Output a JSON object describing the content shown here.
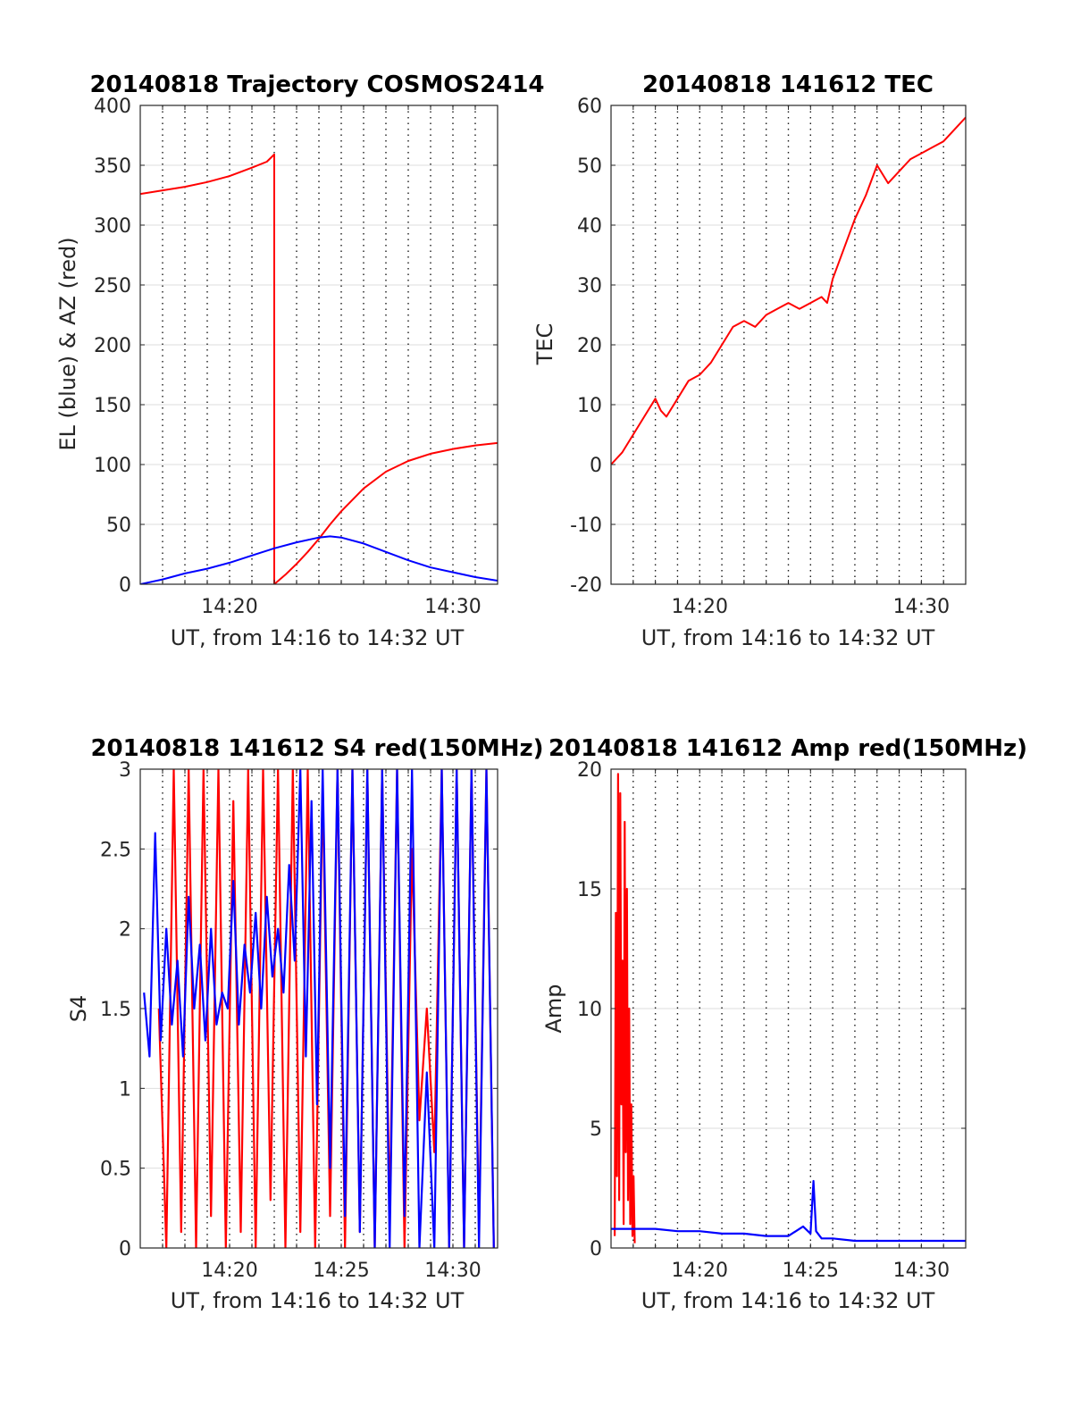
{
  "chart_data": [
    {
      "type": "line",
      "title": "20140818 Trajectory COSMOS2414",
      "xlabel": "UT, from 14:16 to 14:32 UT",
      "ylabel": "EL (blue) & AZ (red)",
      "xlim": [
        "14:16",
        "14:32"
      ],
      "ylim": [
        0,
        400
      ],
      "x_ticks": [
        "14:20",
        "14:30"
      ],
      "y_ticks": [
        0,
        50,
        100,
        150,
        200,
        250,
        300,
        350,
        400
      ],
      "grid": "on",
      "series": [
        {
          "color": "#ff0000",
          "x": [
            "14:16:00",
            "14:17:00",
            "14:18:00",
            "14:19:00",
            "14:20:00",
            "14:21:00",
            "14:21:40",
            "14:22:00",
            "14:22:00",
            "14:22:30",
            "14:23:00",
            "14:23:30",
            "14:24:00",
            "14:24:30",
            "14:25:00",
            "14:26:00",
            "14:27:00",
            "14:28:00",
            "14:29:00",
            "14:30:00",
            "14:31:00",
            "14:32:00"
          ],
          "values": [
            326,
            329,
            332,
            336,
            341,
            348,
            353,
            359,
            0,
            8,
            17,
            27,
            38,
            50,
            61,
            80,
            94,
            103,
            109,
            113,
            116,
            118
          ]
        },
        {
          "color": "#0000ff",
          "x": [
            "14:16:00",
            "14:17:00",
            "14:18:00",
            "14:19:00",
            "14:20:00",
            "14:21:00",
            "14:22:00",
            "14:23:00",
            "14:24:00",
            "14:24:30",
            "14:25:00",
            "14:26:00",
            "14:27:00",
            "14:28:00",
            "14:29:00",
            "14:30:00",
            "14:31:00",
            "14:32:00"
          ],
          "values": [
            0,
            4,
            9,
            13,
            18,
            24,
            30,
            35,
            39,
            40,
            39,
            34,
            27,
            20,
            14,
            10,
            6,
            3
          ]
        }
      ]
    },
    {
      "type": "line",
      "title": "20140818 141612 TEC",
      "xlabel": "UT, from 14:16 to 14:32 UT",
      "ylabel": "TEC",
      "xlim": [
        "14:16",
        "14:32"
      ],
      "ylim": [
        -20,
        60
      ],
      "x_ticks": [
        "14:20",
        "14:30"
      ],
      "y_ticks": [
        -20,
        -10,
        0,
        10,
        20,
        30,
        40,
        50,
        60
      ],
      "grid": "on",
      "series": [
        {
          "color": "#ff0000",
          "x": [
            "14:16:00",
            "14:16:30",
            "14:17:00",
            "14:17:30",
            "14:18:00",
            "14:18:15",
            "14:18:30",
            "14:19:00",
            "14:19:30",
            "14:20:00",
            "14:20:30",
            "14:21:00",
            "14:21:30",
            "14:22:00",
            "14:22:30",
            "14:23:00",
            "14:23:30",
            "14:24:00",
            "14:24:30",
            "14:25:00",
            "14:25:30",
            "14:25:45",
            "14:26:00",
            "14:26:30",
            "14:27:00",
            "14:27:30",
            "14:28:00",
            "14:28:30",
            "14:29:00",
            "14:29:30",
            "14:30:00",
            "14:30:30",
            "14:31:00",
            "14:31:30",
            "14:32:00"
          ],
          "values": [
            0,
            2,
            5,
            8,
            11,
            9,
            8,
            11,
            14,
            15,
            17,
            20,
            23,
            24,
            23,
            25,
            26,
            27,
            26,
            27,
            28,
            27,
            31,
            36,
            41,
            45,
            50,
            47,
            49,
            51,
            52,
            53,
            54,
            56,
            58
          ]
        }
      ]
    },
    {
      "type": "line",
      "title": "20140818 141612 S4 red(150MHz)",
      "xlabel": "UT, from 14:16 to 14:32 UT",
      "ylabel": "S4",
      "xlim": [
        "14:16",
        "14:32"
      ],
      "ylim": [
        0,
        3
      ],
      "x_ticks": [
        "14:20",
        "14:25",
        "14:30"
      ],
      "y_ticks": [
        0,
        0.5,
        1,
        1.5,
        2,
        2.5,
        3
      ],
      "grid": "on",
      "series": [
        {
          "color": "#ff0000",
          "x": [
            "14:16:50",
            "14:17:10",
            "14:17:30",
            "14:17:50",
            "14:18:10",
            "14:18:30",
            "14:18:50",
            "14:19:10",
            "14:19:30",
            "14:19:50",
            "14:20:10",
            "14:20:30",
            "14:20:50",
            "14:21:10",
            "14:21:30",
            "14:21:50",
            "14:22:10",
            "14:22:30",
            "14:22:50",
            "14:23:10",
            "14:23:30",
            "14:23:50",
            "14:24:10",
            "14:24:30",
            "14:24:50",
            "14:25:10",
            "14:25:30",
            "14:25:50",
            "14:26:10",
            "14:26:30",
            "14:26:50",
            "14:27:10",
            "14:27:30",
            "14:27:50",
            "14:28:10",
            "14:28:30",
            "14:28:50",
            "14:29:10",
            "14:29:30",
            "14:29:50",
            "14:30:10",
            "14:30:30",
            "14:30:50",
            "14:31:10",
            "14:31:30",
            "14:31:50"
          ],
          "values": [
            1.5,
            0,
            3,
            0.1,
            3,
            0,
            3,
            0.2,
            3,
            0,
            2.8,
            0.1,
            3,
            0,
            3,
            0.3,
            3,
            0,
            3,
            0.1,
            3,
            0,
            2.9,
            0.2,
            3,
            0,
            3,
            0.1,
            3,
            0,
            3,
            0.2,
            3,
            0,
            2.5,
            0.8,
            1.5,
            0.6,
            3,
            0,
            3,
            0,
            3,
            0.1,
            3,
            0
          ]
        },
        {
          "color": "#0000ff",
          "x": [
            "14:16:10",
            "14:16:25",
            "14:16:40",
            "14:16:55",
            "14:17:10",
            "14:17:25",
            "14:17:40",
            "14:17:55",
            "14:18:10",
            "14:18:25",
            "14:18:40",
            "14:18:55",
            "14:19:10",
            "14:19:25",
            "14:19:40",
            "14:19:55",
            "14:20:10",
            "14:20:25",
            "14:20:40",
            "14:20:55",
            "14:21:10",
            "14:21:25",
            "14:21:40",
            "14:21:55",
            "14:22:10",
            "14:22:25",
            "14:22:40",
            "14:22:55",
            "14:23:10",
            "14:23:25",
            "14:23:40",
            "14:23:55",
            "14:24:10",
            "14:24:30",
            "14:24:50",
            "14:25:10",
            "14:25:30",
            "14:25:50",
            "14:26:10",
            "14:26:30",
            "14:26:50",
            "14:27:10",
            "14:27:30",
            "14:27:50",
            "14:28:10",
            "14:28:30",
            "14:28:50",
            "14:29:10",
            "14:29:30",
            "14:29:50",
            "14:30:10",
            "14:30:30",
            "14:30:50",
            "14:31:10",
            "14:31:30",
            "14:31:50"
          ],
          "values": [
            1.6,
            1.2,
            2.6,
            1.3,
            2.0,
            1.4,
            1.8,
            1.2,
            2.2,
            1.5,
            1.9,
            1.3,
            2.0,
            1.4,
            1.6,
            1.5,
            2.3,
            1.4,
            1.9,
            1.6,
            2.1,
            1.5,
            2.2,
            1.7,
            2.0,
            1.6,
            2.4,
            1.8,
            3.0,
            1.2,
            2.8,
            0.9,
            3.0,
            0.5,
            3.0,
            0.2,
            3.0,
            0.1,
            3.0,
            0,
            3.0,
            0,
            3.0,
            0.2,
            3.0,
            0,
            1.1,
            0,
            3.0,
            0,
            3.0,
            0,
            3.0,
            0,
            3.0,
            0
          ]
        }
      ]
    },
    {
      "type": "line",
      "title": "20140818 141612 Amp red(150MHz)",
      "xlabel": "UT, from 14:16 to 14:32 UT",
      "ylabel": "Amp",
      "xlim": [
        "14:16",
        "14:32"
      ],
      "ylim": [
        0,
        20
      ],
      "x_ticks": [
        "14:20",
        "14:25",
        "14:30"
      ],
      "y_ticks": [
        0,
        5,
        10,
        15,
        20
      ],
      "grid": "on",
      "series": [
        {
          "color": "#ff0000",
          "x": [
            "14:16:10",
            "14:16:13",
            "14:16:16",
            "14:16:19",
            "14:16:22",
            "14:16:25",
            "14:16:28",
            "14:16:31",
            "14:16:34",
            "14:16:37",
            "14:16:40",
            "14:16:43",
            "14:16:46",
            "14:16:49",
            "14:16:52",
            "14:16:55",
            "14:16:58",
            "14:17:01",
            "14:17:04"
          ],
          "values": [
            0.5,
            14,
            3,
            19.8,
            2,
            19,
            6,
            12,
            1,
            17.8,
            4,
            15,
            2,
            10,
            1,
            6,
            0.5,
            3,
            0.2
          ]
        },
        {
          "color": "#0000ff",
          "x": [
            "14:16:00",
            "14:17:00",
            "14:18:00",
            "14:19:00",
            "14:20:00",
            "14:21:00",
            "14:22:00",
            "14:23:00",
            "14:24:00",
            "14:24:40",
            "14:25:00",
            "14:25:08",
            "14:25:15",
            "14:25:30",
            "14:26:00",
            "14:27:00",
            "14:28:00",
            "14:29:00",
            "14:30:00",
            "14:31:00",
            "14:32:00"
          ],
          "values": [
            0.8,
            0.8,
            0.8,
            0.7,
            0.7,
            0.6,
            0.6,
            0.5,
            0.5,
            0.9,
            0.6,
            2.8,
            0.7,
            0.4,
            0.4,
            0.3,
            0.3,
            0.3,
            0.3,
            0.3,
            0.3
          ]
        }
      ]
    }
  ]
}
